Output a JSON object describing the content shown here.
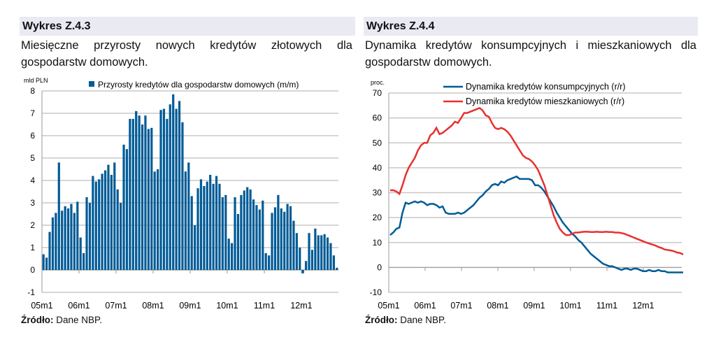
{
  "left": {
    "title": "Wykres Z.4.3",
    "description": "Miesięczne przyrosty nowych kredytów złotowych dla gospodarstw domowych.",
    "source_label": "Źródło:",
    "source_text": " Dane NBP."
  },
  "right": {
    "title": "Wykres Z.4.4",
    "description": "Dynamika kredytów konsumpcyjnych i mieszkaniowych dla gospodarstw domowych.",
    "source_label": "Źródło:",
    "source_text": " Dane NBP."
  },
  "chart_data": [
    {
      "type": "bar",
      "ylabel": "mld PLN",
      "ylim": [
        -1,
        8
      ],
      "yticks": [
        -1,
        0,
        1,
        2,
        3,
        4,
        5,
        6,
        7,
        8
      ],
      "xticks": [
        "05m1",
        "06m1",
        "07m1",
        "08m1",
        "09m1",
        "10m1",
        "11m1",
        "12m1"
      ],
      "legend": "top",
      "grid": true,
      "color": "#005b96",
      "series": [
        {
          "name": "Przyrosty kredytów dla gospodarstw domowych (m/m)",
          "values": [
            0.7,
            0.55,
            1.7,
            2.35,
            2.55,
            4.8,
            2.65,
            2.85,
            2.75,
            2.95,
            2.55,
            3.05,
            1.45,
            0.75,
            3.25,
            3.0,
            4.2,
            3.95,
            4.05,
            4.3,
            4.45,
            4.7,
            4.25,
            4.8,
            3.6,
            3.0,
            5.6,
            5.4,
            6.75,
            6.75,
            7.1,
            6.9,
            6.5,
            6.9,
            6.3,
            6.35,
            4.4,
            4.5,
            7.15,
            7.2,
            6.75,
            7.4,
            7.85,
            7.2,
            7.55,
            6.6,
            4.4,
            4.8,
            3.3,
            2.0,
            3.65,
            4.05,
            3.75,
            3.95,
            4.25,
            3.85,
            4.2,
            3.85,
            3.25,
            3.35,
            1.4,
            1.2,
            3.25,
            2.5,
            3.35,
            3.55,
            3.7,
            3.6,
            3.15,
            2.9,
            2.7,
            3.1,
            0.75,
            0.65,
            2.55,
            2.8,
            3.35,
            2.75,
            2.6,
            2.95,
            2.85,
            2.2,
            1.65,
            1.0,
            -0.15,
            0.4,
            1.65,
            0.9,
            1.85,
            1.55,
            1.55,
            1.6,
            1.45,
            1.2,
            0.65,
            0.1
          ]
        }
      ]
    },
    {
      "type": "line",
      "ylabel": "proc.",
      "ylim": [
        -10,
        70
      ],
      "yticks": [
        -10,
        0,
        10,
        20,
        30,
        40,
        50,
        60,
        70
      ],
      "xticks": [
        "05m1",
        "06m1",
        "07m1",
        "08m1",
        "09m1",
        "10m1",
        "11m1",
        "12m1"
      ],
      "legend": "top",
      "grid": true,
      "series": [
        {
          "name": "Dynamika kredytów konsumpcyjnych (r/r)",
          "color": "#005b96",
          "values": [
            13,
            14,
            15.5,
            16,
            22,
            26,
            25.5,
            26,
            26.5,
            26,
            26.5,
            26,
            25,
            25.5,
            25.5,
            25,
            24,
            24.5,
            22,
            21.5,
            21.5,
            21.5,
            22,
            21.5,
            22,
            23,
            24,
            25,
            26.5,
            28,
            29,
            30.5,
            31.5,
            33,
            33.5,
            33,
            34.5,
            34,
            35,
            35.5,
            36,
            36.5,
            35.5,
            35.5,
            35.5,
            35.5,
            35,
            33,
            33,
            32,
            30.5,
            28.5,
            26.5,
            24.5,
            22,
            20,
            18,
            16.5,
            15,
            13.5,
            12.5,
            11,
            10,
            8.5,
            7,
            5.5,
            4.5,
            3.5,
            2.5,
            1.5,
            1,
            0.5,
            0.5,
            0,
            -0.5,
            -1,
            -0.5,
            -0.5,
            -1,
            -0.5,
            -0.5,
            -1,
            -1.5,
            -1.5,
            -1,
            -1.5,
            -1.5,
            -1,
            -1.5,
            -1.5,
            -2,
            -2,
            -2,
            -2,
            -2,
            -2
          ]
        },
        {
          "name": "Dynamika kredytów mieszkaniowych (r/r)",
          "color": "#e8302e",
          "values": [
            31,
            31,
            30.5,
            29.5,
            33,
            37,
            40,
            42,
            44,
            47,
            49,
            50,
            50,
            53,
            54,
            56,
            53.5,
            54,
            55,
            56,
            57,
            58.5,
            58,
            60,
            62,
            62,
            62.5,
            63,
            63.5,
            64,
            63,
            61,
            60.5,
            58,
            56,
            55.5,
            56,
            55.5,
            54.5,
            53,
            51,
            49,
            47,
            45,
            44,
            43.5,
            42.5,
            41,
            39,
            36,
            33,
            29,
            25,
            21,
            18,
            15.5,
            14,
            13,
            13,
            13.5,
            14,
            14,
            14.2,
            14.3,
            14.3,
            14.2,
            14.2,
            14.3,
            14.2,
            14.2,
            14.3,
            14.2,
            14.2,
            14,
            14,
            13.8,
            13.5,
            13,
            12.5,
            12,
            11.5,
            11,
            10.5,
            10,
            9.6,
            9.2,
            8.8,
            8.2,
            7.8,
            7.2,
            7,
            6.8,
            6.5,
            6,
            5.8,
            5.2
          ]
        }
      ]
    }
  ]
}
